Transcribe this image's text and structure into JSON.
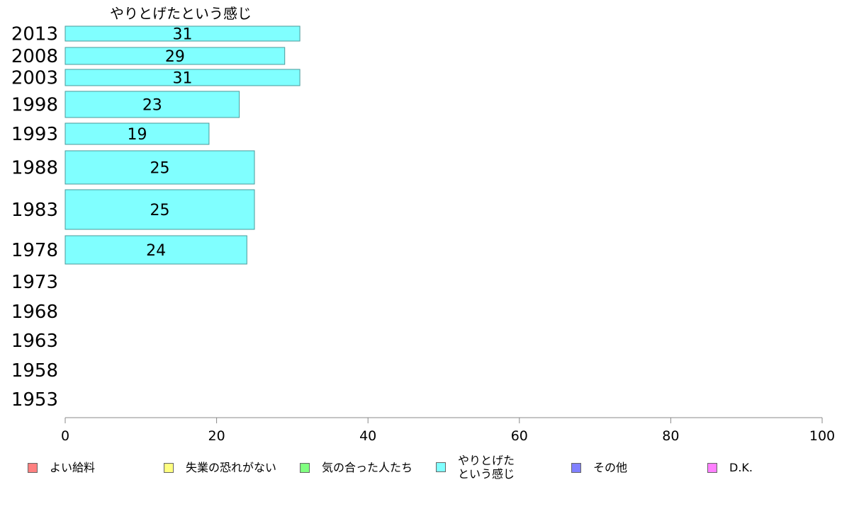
{
  "chart_data": {
    "type": "bar",
    "orientation": "horizontal",
    "title": "やりとげたという感じ",
    "categories": [
      "2013",
      "2008",
      "2003",
      "1998",
      "1993",
      "1988",
      "1983",
      "1978",
      "1973",
      "1968",
      "1963",
      "1958",
      "1953"
    ],
    "series": [
      {
        "name": "やりとげた\nという感じ",
        "values": [
          31,
          29,
          31,
          23,
          19,
          25,
          25,
          24,
          null,
          null,
          null,
          null,
          null
        ],
        "color": "#80ffff"
      }
    ],
    "xlim": [
      0,
      100
    ],
    "xticks": [
      0,
      20,
      40,
      60,
      80,
      100
    ],
    "xlabel": "",
    "ylabel": "",
    "grid": false,
    "legend_position": "bottom",
    "legend": [
      {
        "label": "よい給料",
        "color": "#ff8080"
      },
      {
        "label": "失業の恐れがない",
        "color": "#ffff80"
      },
      {
        "label": "気の合った人たち",
        "color": "#80ff80"
      },
      {
        "label": "やりとげた\nという感じ",
        "color": "#80ffff"
      },
      {
        "label": "その他",
        "color": "#8080ff"
      },
      {
        "label": "D.K.",
        "color": "#ff80ff"
      }
    ]
  }
}
